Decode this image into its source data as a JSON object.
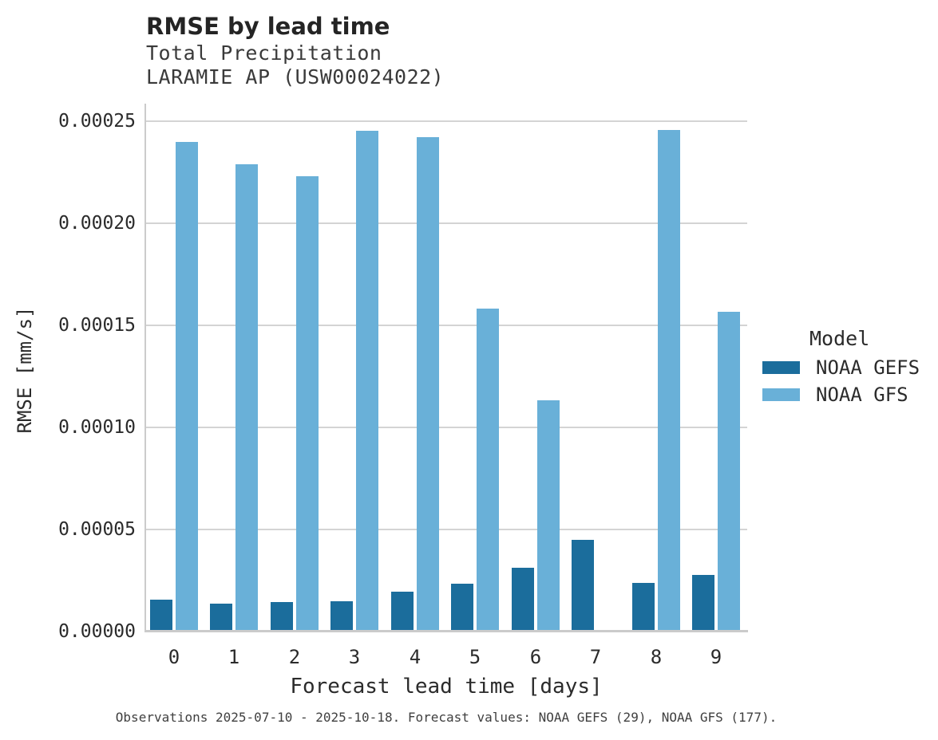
{
  "header": {
    "title": "RMSE by lead time",
    "subtitle_line1": "Total Precipitation",
    "subtitle_line2": "LARAMIE AP (USW00024022)"
  },
  "legend": {
    "title": "Model",
    "items": [
      {
        "label": "NOAA GEFS",
        "color": "#1b6d9c"
      },
      {
        "label": "NOAA GFS",
        "color": "#69b0d8"
      }
    ]
  },
  "footer": {
    "note": "Observations 2025-07-10 - 2025-10-18. Forecast values: NOAA GEFS (29), NOAA GFS (177)."
  },
  "chart_data": {
    "type": "bar",
    "title": "RMSE by lead time",
    "subtitle": [
      "Total Precipitation",
      "LARAMIE AP (USW00024022)"
    ],
    "xlabel": "Forecast lead time [days]",
    "ylabel": "RMSE [mm/s]",
    "categories": [
      "0",
      "1",
      "2",
      "3",
      "4",
      "5",
      "6",
      "7",
      "8",
      "9"
    ],
    "series": [
      {
        "name": "NOAA GEFS",
        "color": "#1b6d9c",
        "values": [
          1.56e-05,
          1.38e-05,
          1.45e-05,
          1.5e-05,
          1.95e-05,
          2.36e-05,
          3.13e-05,
          4.49e-05,
          2.38e-05,
          2.77e-05
        ]
      },
      {
        "name": "NOAA GFS",
        "color": "#69b0d8",
        "values": [
          0.00024,
          0.000229,
          0.000223,
          0.0002455,
          0.000242,
          0.0001583,
          0.0001133,
          null,
          0.0002457,
          0.0001566
        ]
      }
    ],
    "ylim": [
      0,
      0.000258
    ],
    "yticks": [
      {
        "value": 0.0,
        "label": "0.00000"
      },
      {
        "value": 5e-05,
        "label": "0.00005"
      },
      {
        "value": 0.0001,
        "label": "0.00010"
      },
      {
        "value": 0.00015,
        "label": "0.00015"
      },
      {
        "value": 0.0002,
        "label": "0.00020"
      },
      {
        "value": 0.00025,
        "label": "0.00025"
      }
    ],
    "grid": true,
    "legend_position": "right",
    "legend_title": "Model"
  }
}
